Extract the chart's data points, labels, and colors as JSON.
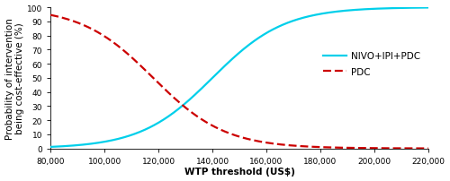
{
  "x_min": 80000,
  "x_max": 220000,
  "y_min": 0,
  "y_max": 100,
  "x_ticks": [
    80000,
    100000,
    120000,
    140000,
    160000,
    180000,
    200000,
    220000
  ],
  "y_ticks": [
    0,
    10,
    20,
    30,
    40,
    50,
    60,
    70,
    80,
    90,
    100
  ],
  "xlabel": "WTP threshold (US$)",
  "ylabel": "Probability of intervention\nbeing cost-effective (%)",
  "nivo_color": "#00CFEA",
  "pdc_color": "#CC0000",
  "nivo_label": "NIVO+IPI+PDC",
  "pdc_label": "PDC",
  "nivo_midpoint": 140000,
  "nivo_steepness": 7.5e-05,
  "pdc_midpoint": 118000,
  "pdc_steepness": 7.5e-05,
  "bg_color": "#ffffff",
  "legend_fontsize": 7.5,
  "axis_fontsize": 7.5,
  "tick_fontsize": 6.5
}
